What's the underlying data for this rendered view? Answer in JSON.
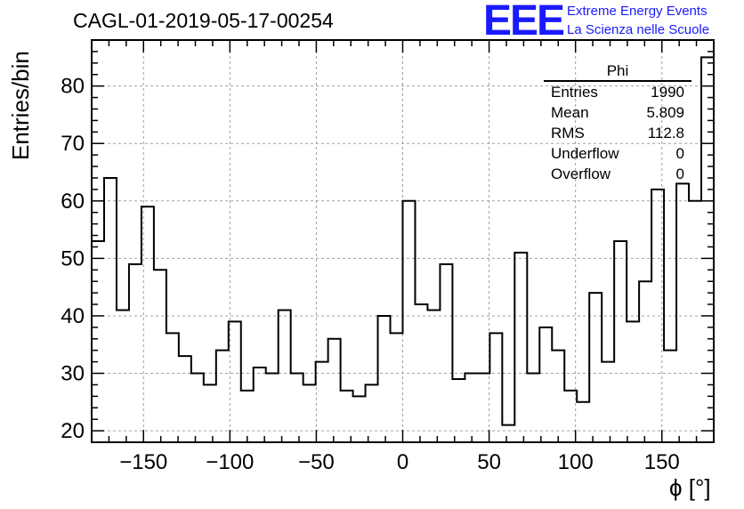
{
  "title": "CAGL-01-2019-05-17-00254",
  "branding": {
    "logo": "EEE",
    "line1": "Extreme Energy Events",
    "line2": "La Scienza nelle Scuole",
    "color": "#1a1aff"
  },
  "stats_box": {
    "title": "Phi",
    "rows": [
      {
        "label": "Entries",
        "value": "1990"
      },
      {
        "label": "Mean",
        "value": "5.809"
      },
      {
        "label": "RMS",
        "value": "112.8"
      },
      {
        "label": "Underflow",
        "value": "0"
      },
      {
        "label": "Overflow",
        "value": "0"
      }
    ]
  },
  "chart_data": {
    "type": "bar",
    "subtype": "step-histogram",
    "title": "CAGL-01-2019-05-17-00254",
    "xlabel": "ϕ [°]",
    "ylabel": "Entries/bin",
    "xlim": [
      -180,
      180
    ],
    "ylim": [
      18,
      88
    ],
    "bin_width": 7.2,
    "bin_edges_start": -180,
    "values": [
      53,
      64,
      41,
      49,
      59,
      48,
      37,
      33,
      30,
      28,
      34,
      39,
      27,
      31,
      30,
      41,
      30,
      28,
      32,
      36,
      27,
      26,
      28,
      40,
      37,
      60,
      42,
      41,
      49,
      29,
      30,
      30,
      37,
      21,
      51,
      30,
      38,
      34,
      27,
      25,
      44,
      32,
      53,
      39,
      46,
      62,
      34,
      63,
      60,
      85
    ],
    "x_ticks": [
      -150,
      -100,
      -50,
      0,
      50,
      100,
      150
    ],
    "x_tick_labels": [
      "−150",
      "−100",
      "−50",
      "0",
      "50",
      "100",
      "150"
    ],
    "y_ticks": [
      20,
      30,
      40,
      50,
      60,
      70,
      80
    ],
    "y_tick_labels": [
      "20",
      "30",
      "40",
      "50",
      "60",
      "70",
      "80"
    ],
    "grid": true,
    "legend": "top-right stats box",
    "line_color": "#000000"
  }
}
